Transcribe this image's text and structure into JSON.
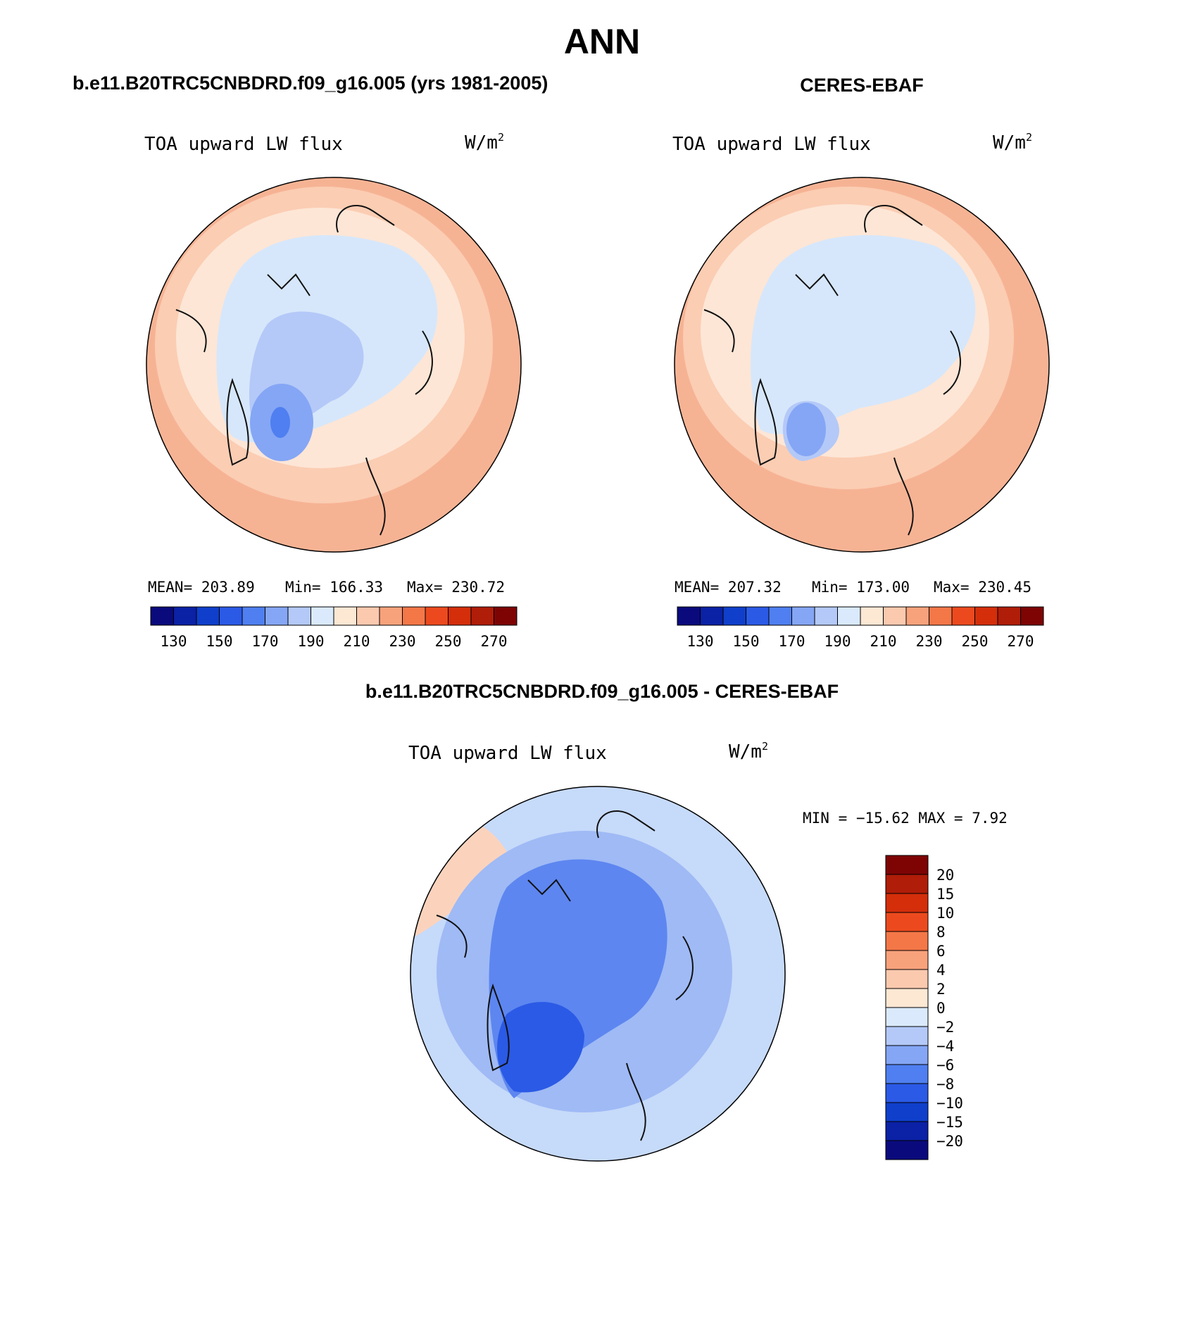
{
  "figure": {
    "title": "ANN",
    "panels": [
      {
        "id": "model",
        "title": "b.e11.B20TRC5CNBDRD.f09_g16.005 (yrs 1981-2005)",
        "variable": "TOA upward LW flux",
        "units_base": "W/m",
        "units_exp": "2",
        "stats": {
          "mean": "MEAN= 203.89",
          "min": "Min= 166.33",
          "max": "Max= 230.72"
        }
      },
      {
        "id": "obs",
        "title": "CERES-EBAF",
        "variable": "TOA upward LW flux",
        "units_base": "W/m",
        "units_exp": "2",
        "stats": {
          "mean": "MEAN= 207.32",
          "min": "Min= 173.00",
          "max": "Max= 230.45"
        }
      },
      {
        "id": "diff",
        "title": "b.e11.B20TRC5CNBDRD.f09_g16.005 - CERES-EBAF",
        "variable": "TOA upward LW flux",
        "units_base": "W/m",
        "units_exp": "2",
        "stats": {
          "minmax": "MIN = −15.62 MAX =   7.92"
        }
      }
    ]
  },
  "colorbars": {
    "absolute": {
      "colors": [
        "#0a0a7d",
        "#0b21a6",
        "#0f3fcb",
        "#2b5ae6",
        "#4f7ff0",
        "#85a6f5",
        "#b4c9f8",
        "#daeafc",
        "#fde8d4",
        "#fbc9ae",
        "#f8a27c",
        "#f47748",
        "#ec4a1e",
        "#d42e0b",
        "#b01d08",
        "#7e0404"
      ],
      "labels": [
        "130",
        "150",
        "170",
        "190",
        "210",
        "230",
        "250",
        "270"
      ]
    },
    "difference": {
      "colors": [
        "#0a0a7d",
        "#0b21a6",
        "#0f3fcb",
        "#2b5ae6",
        "#4f7ff0",
        "#85a6f5",
        "#b4c9f8",
        "#daeafc",
        "#fde8d4",
        "#fbc9ae",
        "#f8a27c",
        "#f47748",
        "#ec4a1e",
        "#d42e0b",
        "#b01d08",
        "#7e0404"
      ],
      "labels": [
        "−20",
        "−15",
        "−10",
        "−8",
        "−6",
        "−4",
        "−2",
        "0",
        "2",
        "4",
        "6",
        "8",
        "10",
        "15",
        "20"
      ]
    }
  },
  "map_colors": {
    "warm_outer": "#f6b394",
    "warm_mid": "#fbcdb3",
    "warm_inner": "#fde6d6",
    "pale_blue": "#d6e7fb",
    "mid_blue": "#b4c9f8",
    "deep_blue": "#85a6f5",
    "core_blue": "#4f7ff0",
    "diff_pale": "#c6dafa",
    "diff_mid": "#9fbaf5",
    "diff_deep": "#5d86f0",
    "diff_core": "#2b5ae6",
    "diff_warm": "#fbd3bd"
  }
}
